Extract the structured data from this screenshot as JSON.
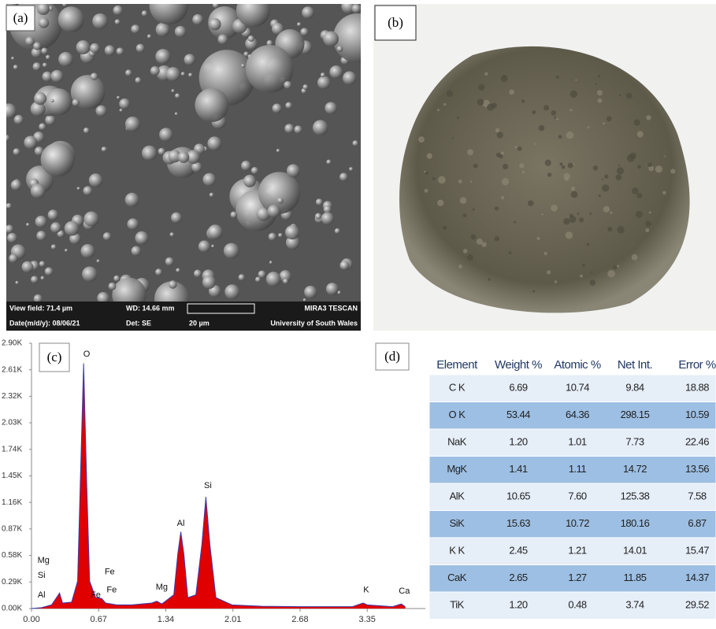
{
  "panels": {
    "a": "(a)",
    "b": "(b)",
    "c": "(c)",
    "d": "(d)"
  },
  "sem_bar": {
    "view_field": "View field: 71.4 µm",
    "wd": "WD: 14.66 mm",
    "maker": "MIRA3 TESCAN",
    "date": "Date(m/d/y): 08/06/21",
    "det": "Det: SE",
    "scale": "20 µm",
    "institution": "University of South Wales"
  },
  "chart_data": {
    "type": "line",
    "color": "#e00000",
    "x": [
      0,
      0.1,
      0.2,
      0.25,
      0.28,
      0.31,
      0.4,
      0.46,
      0.49,
      0.52,
      0.55,
      0.58,
      0.64,
      0.7,
      0.74,
      0.85,
      1.0,
      1.2,
      1.25,
      1.3,
      1.42,
      1.46,
      1.49,
      1.52,
      1.56,
      1.64,
      1.7,
      1.74,
      1.78,
      1.84,
      2.0,
      2.3,
      2.7,
      3.2,
      3.28,
      3.31,
      3.35,
      3.6,
      3.66,
      3.69,
      3.73
    ],
    "values": [
      0,
      10,
      40,
      120,
      170,
      60,
      70,
      300,
      1500,
      2680,
      1400,
      300,
      120,
      110,
      60,
      40,
      40,
      60,
      80,
      50,
      150,
      600,
      840,
      600,
      120,
      150,
      700,
      1220,
      700,
      120,
      40,
      25,
      20,
      20,
      50,
      60,
      40,
      20,
      40,
      50,
      20
    ],
    "xlim": [
      0,
      3.93
    ],
    "ylim": [
      0,
      2900
    ],
    "xticks": [
      {
        "value": 0,
        "label": "0.00"
      },
      0.67,
      1.34,
      2.01,
      2.68,
      3.35
    ],
    "yticks": [
      {
        "value": 0,
        "label": "0.00K"
      },
      {
        "value": 290,
        "label": "0.29K"
      },
      {
        "value": 580,
        "label": "0.58K"
      },
      {
        "value": 870,
        "label": "0.87K"
      },
      {
        "value": 1160,
        "label": "1.16K"
      },
      {
        "value": 1450,
        "label": "1.45K"
      },
      {
        "value": 1740,
        "label": "1.74K"
      },
      {
        "value": 2030,
        "label": "2.03K"
      },
      {
        "value": 2320,
        "label": "2.32K"
      },
      {
        "value": 2610,
        "label": "2.61K"
      },
      {
        "value": 2900,
        "label": "2.90K"
      }
    ],
    "annotations": [
      {
        "text": "O",
        "x": 0.55,
        "y": 2780
      },
      {
        "text": "Mg",
        "x": 0.12,
        "y": 525
      },
      {
        "text": "Si",
        "x": 0.1,
        "y": 360
      },
      {
        "text": "Al",
        "x": 0.1,
        "y": 145
      },
      {
        "text": "Fe",
        "x": 0.78,
        "y": 400
      },
      {
        "text": "Fe",
        "x": 0.64,
        "y": 145
      },
      {
        "text": "Fe",
        "x": 0.8,
        "y": 200
      },
      {
        "text": "Mg",
        "x": 1.3,
        "y": 230
      },
      {
        "text": "Al",
        "x": 1.49,
        "y": 930
      },
      {
        "text": "Si",
        "x": 1.76,
        "y": 1340
      },
      {
        "text": "K",
        "x": 3.34,
        "y": 200
      },
      {
        "text": "Ca",
        "x": 3.72,
        "y": 190
      }
    ]
  },
  "table": {
    "header": [
      "Element",
      "Weight %",
      "Atomic %",
      "Net Int.",
      "Error %"
    ],
    "rows": [
      [
        "C K",
        "6.69",
        "10.74",
        "9.84",
        "18.88"
      ],
      [
        "O K",
        "53.44",
        "64.36",
        "298.15",
        "10.59"
      ],
      [
        "NaK",
        "1.20",
        "1.01",
        "7.73",
        "22.46"
      ],
      [
        "MgK",
        "1.41",
        "1.11",
        "14.72",
        "13.56"
      ],
      [
        "AlK",
        "10.65",
        "7.60",
        "125.38",
        "7.58"
      ],
      [
        "SiK",
        "15.63",
        "10.72",
        "180.16",
        "6.87"
      ],
      [
        "K K",
        "2.45",
        "1.21",
        "14.01",
        "15.47"
      ],
      [
        "CaK",
        "2.65",
        "1.27",
        "11.85",
        "14.37"
      ],
      [
        "TiK",
        "1.20",
        "0.48",
        "3.74",
        "29.52"
      ]
    ]
  }
}
